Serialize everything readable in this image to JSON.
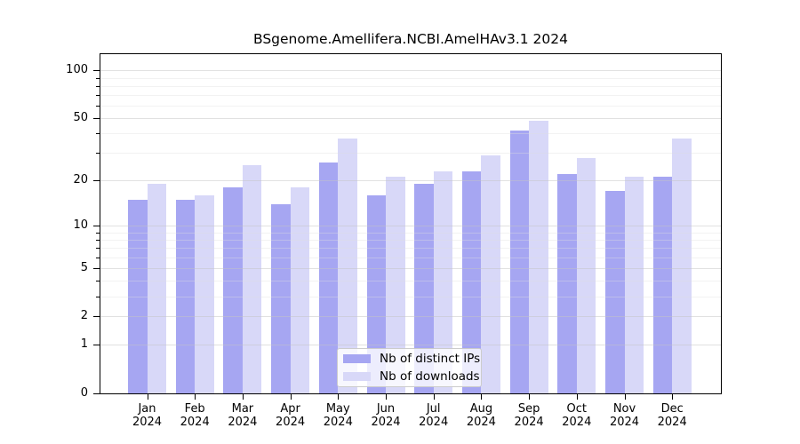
{
  "title": "BSgenome.Amellifera.NCBI.AmelHAv3.1 2024",
  "chart_data": {
    "type": "bar",
    "categories": [
      "Jan",
      "Feb",
      "Mar",
      "Apr",
      "May",
      "Jun",
      "Jul",
      "Aug",
      "Sep",
      "Oct",
      "Nov",
      "Dec"
    ],
    "category_year": "2024",
    "series": [
      {
        "name": "Nb of distinct IPs",
        "color": "#a6a6f2",
        "values": [
          15,
          15,
          18,
          14,
          26,
          16,
          19,
          23,
          42,
          22,
          17,
          21
        ]
      },
      {
        "name": "Nb of downloads",
        "color": "#d8d8f8",
        "values": [
          19,
          16,
          25,
          18,
          37,
          21,
          23,
          29,
          48,
          28,
          21,
          37
        ]
      }
    ],
    "yscale": "log1p",
    "ylim": [
      0,
      126
    ],
    "yticks": [
      0,
      1,
      2,
      5,
      10,
      20,
      50,
      100
    ],
    "yticks_minor": [
      3,
      4,
      6,
      7,
      8,
      9,
      30,
      40,
      60,
      70,
      80,
      90
    ],
    "grid": true,
    "grid_above_bars": true,
    "legend_position": "lower center"
  }
}
